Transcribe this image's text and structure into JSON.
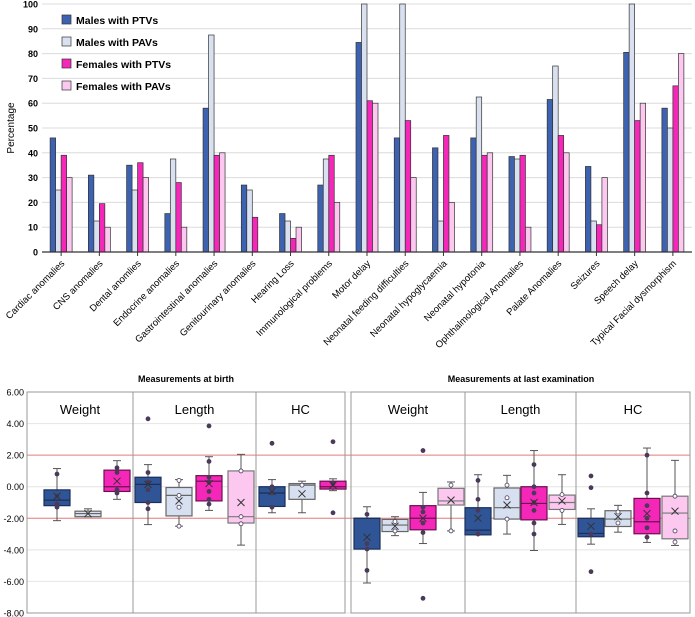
{
  "chart_data": [
    {
      "type": "bar",
      "ylabel": "Percentage",
      "ylim": [
        0,
        100
      ],
      "yticks": [
        "0",
        "10",
        "20",
        "30",
        "40",
        "50",
        "60",
        "70",
        "80",
        "90",
        "100"
      ],
      "grid": true,
      "legend_position": "top-left",
      "categories": [
        "Cardiac anomalies",
        "CNS anomalies",
        "Dental anomlies",
        "Endocrine anomalies",
        "Gastrointestinal anomalies",
        "Genitourinary anomalies",
        "Hearing Loss",
        "Immunological problems",
        "Motor delay",
        "Neonatal feeding difficulties",
        "Neonatal hypoglycaemia",
        "Neonatal hypotonia",
        "Ophthalmological Anomalies",
        "Palate Anomalies",
        "Seizures",
        "Speech delay",
        "Typical Facial dysmorphism"
      ],
      "series": [
        {
          "name": "Males with PTVs",
          "color": "#3d62b0",
          "values": [
            46,
            31,
            35,
            15.5,
            58,
            27,
            15.5,
            27,
            84.5,
            46,
            42,
            46,
            38.5,
            61.5,
            34.5,
            80.5,
            58
          ]
        },
        {
          "name": "Males with PAVs",
          "color": "#d9e1f0",
          "values": [
            25,
            12.5,
            25,
            37.5,
            87.5,
            25,
            12.5,
            37.5,
            100,
            100,
            12.5,
            62.5,
            37.5,
            75,
            12.5,
            100,
            50
          ]
        },
        {
          "name": "Females with PTVs",
          "color": "#f527b8",
          "values": [
            39,
            19.5,
            36,
            28,
            39,
            14,
            5.5,
            39,
            61,
            53,
            47,
            39,
            39,
            47,
            11,
            53,
            67
          ]
        },
        {
          "name": "Females with PAVs",
          "color": "#fcc8f0",
          "values": [
            30,
            10,
            30,
            10,
            40,
            0,
            10,
            20,
            60,
            30,
            20,
            40,
            10,
            40,
            30,
            60,
            80
          ]
        }
      ]
    },
    {
      "type": "box",
      "ylim": [
        -8,
        6
      ],
      "yticks": [
        "6.00",
        "4.00",
        "2.00",
        "0.00",
        "-2.00",
        "-4.00",
        "-6.00",
        "-8.00"
      ],
      "reference_lines": [
        2,
        -2
      ],
      "reference_color": "#e88080",
      "series_colors": [
        "#2f5597",
        "#d6e0f0",
        "#f527b8",
        "#fcc8f0"
      ],
      "panels": [
        {
          "title": "Measurements at birth",
          "groups": [
            {
              "label": "Weight",
              "boxes": [
                {
                  "q1": -1.2,
                  "median": -0.85,
                  "q3": -0.2,
                  "min": -2.15,
                  "max": 1.15,
                  "mean": -0.6,
                  "points": [
                    0.8,
                    -0.6,
                    -1.1,
                    -1.3
                  ]
                },
                {
                  "q1": -1.9,
                  "median": -1.7,
                  "q3": -1.55,
                  "min": -1.9,
                  "max": -1.4,
                  "mean": -1.7,
                  "points": []
                },
                {
                  "q1": -0.3,
                  "median": 0,
                  "q3": 1.05,
                  "min": -0.8,
                  "max": 1.65,
                  "mean": 0.35,
                  "points": [
                    1.2,
                    0.9,
                    -0.2,
                    -0.4
                  ]
                },
                null
              ]
            },
            {
              "label": "Length",
              "boxes": [
                {
                  "q1": -1.0,
                  "median": 0.15,
                  "q3": 0.6,
                  "min": -2.4,
                  "max": 1.4,
                  "mean": 0.15,
                  "points": [
                    4.3,
                    0.9,
                    0.3,
                    -0.2,
                    -1.0,
                    -1.4
                  ]
                },
                {
                  "q1": -1.85,
                  "median": -0.55,
                  "q3": -0.05,
                  "min": -2.5,
                  "max": 0.45,
                  "mean": -0.9,
                  "points": [
                    0.4,
                    -0.55,
                    -1.3,
                    -2.5
                  ]
                },
                {
                  "q1": -0.9,
                  "median": 0.35,
                  "q3": 0.7,
                  "min": -1.5,
                  "max": 1.9,
                  "mean": 0.2,
                  "points": [
                    3.85,
                    1.6,
                    0.6,
                    0.3,
                    -0.3,
                    -0.8,
                    -1.1
                  ]
                },
                {
                  "q1": -2.3,
                  "median": -1.9,
                  "q3": 1.0,
                  "min": -3.7,
                  "max": 2.05,
                  "mean": -1.0,
                  "points": [
                    1.0,
                    -1.9,
                    -2.35
                  ]
                }
              ]
            },
            {
              "label": "HC",
              "boxes": [
                {
                  "q1": -1.25,
                  "median": -0.4,
                  "q3": 0,
                  "min": -1.65,
                  "max": 0.45,
                  "mean": -0.3,
                  "points": [
                    2.75,
                    0,
                    -0.4,
                    -1.3
                  ]
                },
                {
                  "q1": -0.8,
                  "median": 0.1,
                  "q3": 0.2,
                  "min": -1.65,
                  "max": 0.35,
                  "mean": -0.45,
                  "points": [
                    0.1
                  ]
                },
                {
                  "q1": -0.15,
                  "median": 0,
                  "q3": 0.35,
                  "min": -0.25,
                  "max": 0.5,
                  "mean": 0.1,
                  "points": [
                    2.85,
                    -1.65,
                    0.2
                  ]
                },
                null
              ]
            }
          ]
        },
        {
          "title": "Measurements at last examination",
          "groups": [
            {
              "label": "Weight",
              "boxes": [
                {
                  "q1": -3.95,
                  "median": -2.0,
                  "q3": -2.0,
                  "min": -6.1,
                  "max": -1.27,
                  "mean": -3.2,
                  "points": [
                    -1.75,
                    -3.6,
                    -3.95,
                    -5.3
                  ]
                },
                {
                  "q1": -2.84,
                  "median": -2.43,
                  "q3": -2.07,
                  "min": -3.1,
                  "max": -1.9,
                  "mean": -2.5,
                  "points": [
                    -2.2,
                    -2.8
                  ]
                },
                {
                  "q1": -2.73,
                  "median": -2.0,
                  "q3": -1.2,
                  "min": -3.6,
                  "max": -0.36,
                  "mean": -2.0,
                  "points": [
                    2.29,
                    -7.07,
                    -1.3,
                    -1.6,
                    -2.3,
                    -2.9
                  ]
                },
                {
                  "q1": -1.16,
                  "median": -0.9,
                  "q3": -0.1,
                  "min": -2.8,
                  "max": 0.3,
                  "mean": -0.85,
                  "points": [
                    0.1,
                    -2.8
                  ]
                }
              ]
            },
            {
              "label": "Length",
              "boxes": [
                {
                  "q1": -3.05,
                  "median": -2.75,
                  "q3": -1.33,
                  "min": -3.05,
                  "max": 0.76,
                  "mean": -2.0,
                  "points": [
                    0.4,
                    -0.8,
                    -1.5,
                    -3.0
                  ]
                },
                {
                  "q1": -2.05,
                  "median": -1.33,
                  "q3": -0.08,
                  "min": -3.0,
                  "max": 0.72,
                  "mean": -1.16,
                  "points": [
                    0.1,
                    -0.7,
                    -2.05
                  ]
                },
                {
                  "q1": -2.1,
                  "median": -1.06,
                  "q3": 0,
                  "min": -4.04,
                  "max": 2.29,
                  "mean": -1.0,
                  "points": [
                    1.4,
                    0,
                    -0.4,
                    -1.0,
                    -1.5,
                    -2.3,
                    -3.0
                  ]
                },
                {
                  "q1": -1.44,
                  "median": -1.0,
                  "q3": -0.53,
                  "min": -2.39,
                  "max": 0.76,
                  "mean": -0.9,
                  "points": [
                    -0.5,
                    -1.5
                  ]
                }
              ]
            },
            {
              "label": "HC",
              "boxes": [
                {
                  "q1": -3.17,
                  "median": -2.96,
                  "q3": -2.0,
                  "min": -3.64,
                  "max": -1.4,
                  "mean": -2.5,
                  "points": [
                    0.68,
                    -0.06,
                    -5.38,
                    -3.0
                  ]
                },
                {
                  "q1": -2.52,
                  "median": -2.05,
                  "q3": -1.52,
                  "min": -2.88,
                  "max": -1.18,
                  "mean": -1.9,
                  "points": [
                    -1.6,
                    -2.3
                  ]
                },
                {
                  "q1": -2.98,
                  "median": -2.22,
                  "q3": -0.74,
                  "min": -3.53,
                  "max": 2.45,
                  "mean": -1.7,
                  "points": [
                    2.0,
                    -0.4,
                    -1.2,
                    -2.0,
                    -2.6,
                    -3.2
                  ]
                },
                {
                  "q1": -3.3,
                  "median": -1.67,
                  "q3": -0.6,
                  "min": -3.72,
                  "max": 1.67,
                  "mean": -1.55,
                  "points": [
                    -0.6,
                    -2.8,
                    -3.5
                  ]
                }
              ]
            }
          ]
        }
      ]
    }
  ]
}
